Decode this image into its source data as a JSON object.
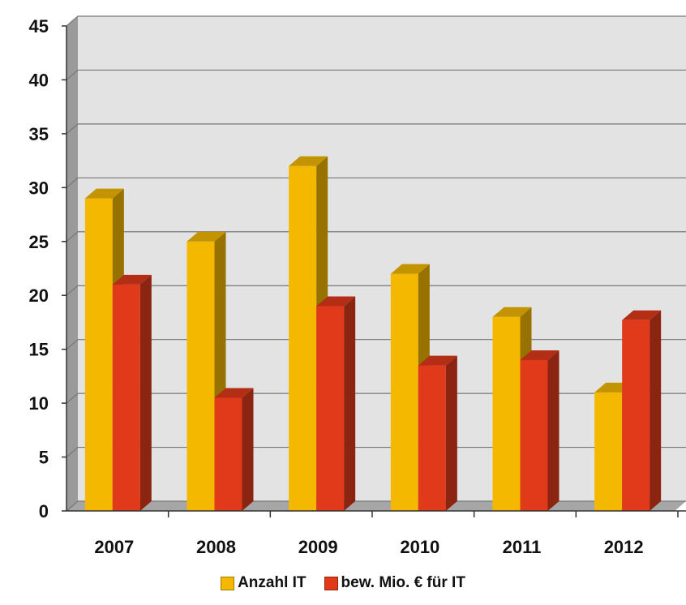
{
  "chart_data": {
    "type": "bar",
    "categories": [
      "2007",
      "2008",
      "2009",
      "2010",
      "2011",
      "2012"
    ],
    "series": [
      {
        "name": "Anzahl IT",
        "values": [
          29,
          25,
          32,
          22,
          18,
          11
        ],
        "color": "#F5B800"
      },
      {
        "name": "bew. Mio. € für IT",
        "values": [
          21,
          10.5,
          19,
          13.5,
          14,
          17.7
        ],
        "color": "#E03A1A"
      }
    ],
    "ylim": [
      0,
      45
    ],
    "yticks": [
      "0",
      "5",
      "10",
      "15",
      "20",
      "25",
      "30",
      "35",
      "40",
      "45"
    ],
    "grid": true,
    "legend_position": "bottom",
    "style": "3d",
    "wall_color": "#E3E3E3",
    "floor_color": "#A6A6A6"
  }
}
